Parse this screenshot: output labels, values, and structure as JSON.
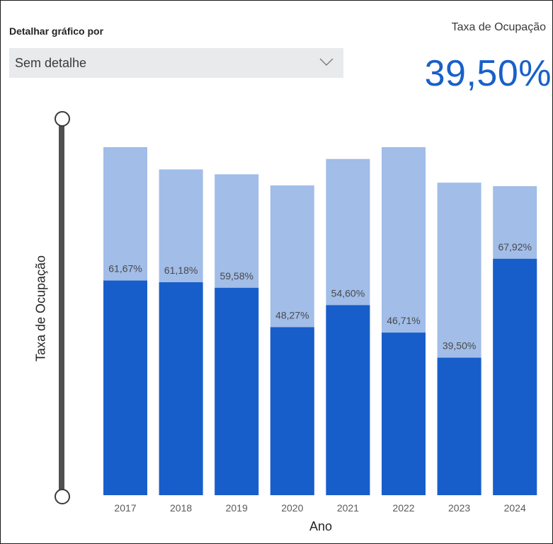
{
  "filter": {
    "label": "Detalhar gráfico por",
    "selected": "Sem detalhe"
  },
  "kpi": {
    "title": "Taxa de Ocupação",
    "value": "39,50%"
  },
  "slider": {
    "label": "Taxa de Ocupação"
  },
  "colors": {
    "occupied": "#175ecb",
    "capacity": "#a1bde8",
    "kpi": "#1860c9"
  },
  "chart_data": {
    "type": "bar",
    "xlabel": "Ano",
    "ylabel": "Taxa de Ocupação",
    "categories": [
      "2017",
      "2018",
      "2019",
      "2020",
      "2021",
      "2022",
      "2023",
      "2024"
    ],
    "series": [
      {
        "values": [
          61.67,
          61.18,
          59.58,
          48.27,
          54.6,
          46.71,
          39.5,
          67.92
        ],
        "labels": [
          "61,67%",
          "61,18%",
          "59,58%",
          "48,27%",
          "54,60%",
          "46,71%",
          "39,50%",
          "67,92%"
        ]
      },
      {
        "values": [
          100,
          93.6,
          92.2,
          89.0,
          96.6,
          100,
          89.8,
          88.8
        ]
      }
    ],
    "grid": false
  }
}
